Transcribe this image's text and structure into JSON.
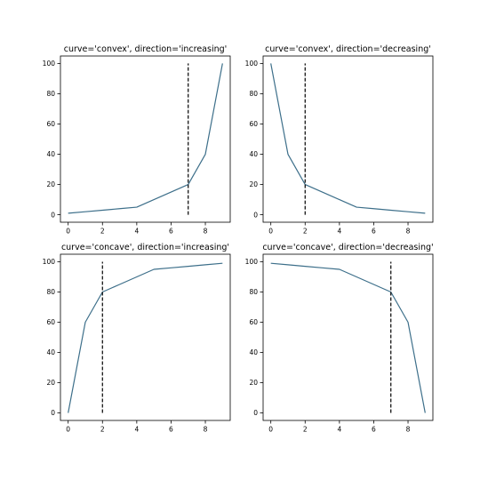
{
  "colors": {
    "line": "#3d6f8a",
    "knee": "#000000"
  },
  "chart_data": [
    {
      "type": "line",
      "title": "curve='convex', direction='increasing'",
      "x": [
        0,
        1,
        2,
        3,
        4,
        5,
        6,
        7,
        8,
        9
      ],
      "series": [
        {
          "values": [
            1,
            2,
            3,
            4,
            5,
            10,
            15,
            20,
            40,
            100
          ]
        }
      ],
      "knee_line": {
        "x": 7,
        "y0": 0,
        "y1": 100
      },
      "xticks": [
        0,
        2,
        4,
        6,
        8
      ],
      "yticks": [
        0,
        20,
        40,
        60,
        80,
        100
      ],
      "xlim": [
        -0.45,
        9.45
      ],
      "ylim": [
        -4.95,
        104.95
      ],
      "grid": false
    },
    {
      "type": "line",
      "title": "curve='convex', direction='decreasing'",
      "x": [
        0,
        1,
        2,
        3,
        4,
        5,
        6,
        7,
        8,
        9
      ],
      "series": [
        {
          "values": [
            100,
            40,
            20,
            15,
            10,
            5,
            4,
            3,
            2,
            1
          ]
        }
      ],
      "knee_line": {
        "x": 2,
        "y0": 0,
        "y1": 100
      },
      "xticks": [
        0,
        2,
        4,
        6,
        8
      ],
      "yticks": [
        0,
        20,
        40,
        60,
        80,
        100
      ],
      "xlim": [
        -0.45,
        9.45
      ],
      "ylim": [
        -4.95,
        104.95
      ],
      "grid": false
    },
    {
      "type": "line",
      "title": "curve='concave', direction='increasing'",
      "x": [
        0,
        1,
        2,
        3,
        4,
        5,
        6,
        7,
        8,
        9
      ],
      "series": [
        {
          "values": [
            0,
            60,
            80,
            85,
            90,
            95,
            96,
            97,
            98,
            99
          ]
        }
      ],
      "knee_line": {
        "x": 2,
        "y0": 0,
        "y1": 100
      },
      "xticks": [
        0,
        2,
        4,
        6,
        8
      ],
      "yticks": [
        0,
        20,
        40,
        60,
        80,
        100
      ],
      "xlim": [
        -0.45,
        9.45
      ],
      "ylim": [
        -5,
        105
      ],
      "grid": false
    },
    {
      "type": "line",
      "title": "curve='concave', direction='decreasing'",
      "x": [
        0,
        1,
        2,
        3,
        4,
        5,
        6,
        7,
        8,
        9
      ],
      "series": [
        {
          "values": [
            99,
            98,
            97,
            96,
            95,
            90,
            85,
            80,
            60,
            0
          ]
        }
      ],
      "knee_line": {
        "x": 7,
        "y0": 0,
        "y1": 100
      },
      "xticks": [
        0,
        2,
        4,
        6,
        8
      ],
      "yticks": [
        0,
        20,
        40,
        60,
        80,
        100
      ],
      "xlim": [
        -0.45,
        9.45
      ],
      "ylim": [
        -5,
        105
      ],
      "grid": false
    }
  ]
}
